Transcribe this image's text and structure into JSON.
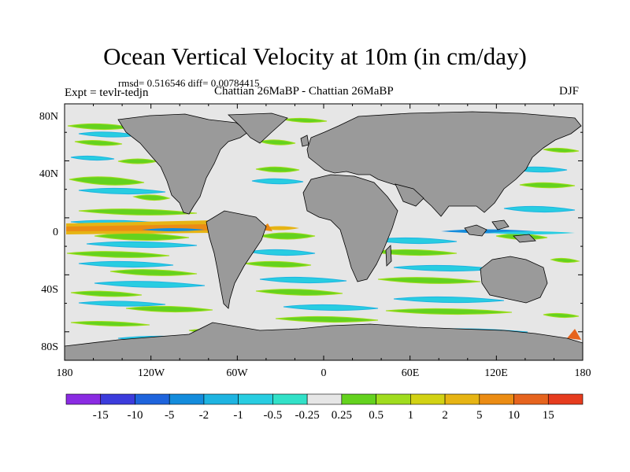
{
  "figure": {
    "title": "Ocean Vertical Velocity at 10m (in cm/day)",
    "stats": "rmsd= 0.516546 diff= 0.00784415",
    "experiment": "Expt = tevlr-tedjn",
    "case": "Chattian  26MaBP - Chattian  26MaBP",
    "season": "DJF"
  },
  "axes": {
    "lon_labels": [
      "180",
      "120W",
      "60W",
      "0",
      "60E",
      "120E",
      "180"
    ],
    "lat_labels": [
      "80N",
      "40N",
      "0",
      "40S",
      "80S"
    ]
  },
  "colorbar": {
    "colors": [
      "#8a2be2",
      "#3c3cdc",
      "#1e64dc",
      "#148cdc",
      "#1eb4e1",
      "#28cde1",
      "#32e1c8",
      "#e6e6e6",
      "#64d21e",
      "#a0dc1e",
      "#d2d214",
      "#e6b414",
      "#eb8c14",
      "#e6641e",
      "#e63c1e"
    ],
    "labels": [
      "-15",
      "-10",
      "-5",
      "-2",
      "-1",
      "-0.5",
      "-0.25",
      "0.25",
      "0.5",
      "1",
      "2",
      "5",
      "10",
      "15"
    ]
  },
  "map_colors": {
    "land": "#9a9a9a",
    "ocean_background": "#e6e6e6",
    "coast": "#000000"
  }
}
